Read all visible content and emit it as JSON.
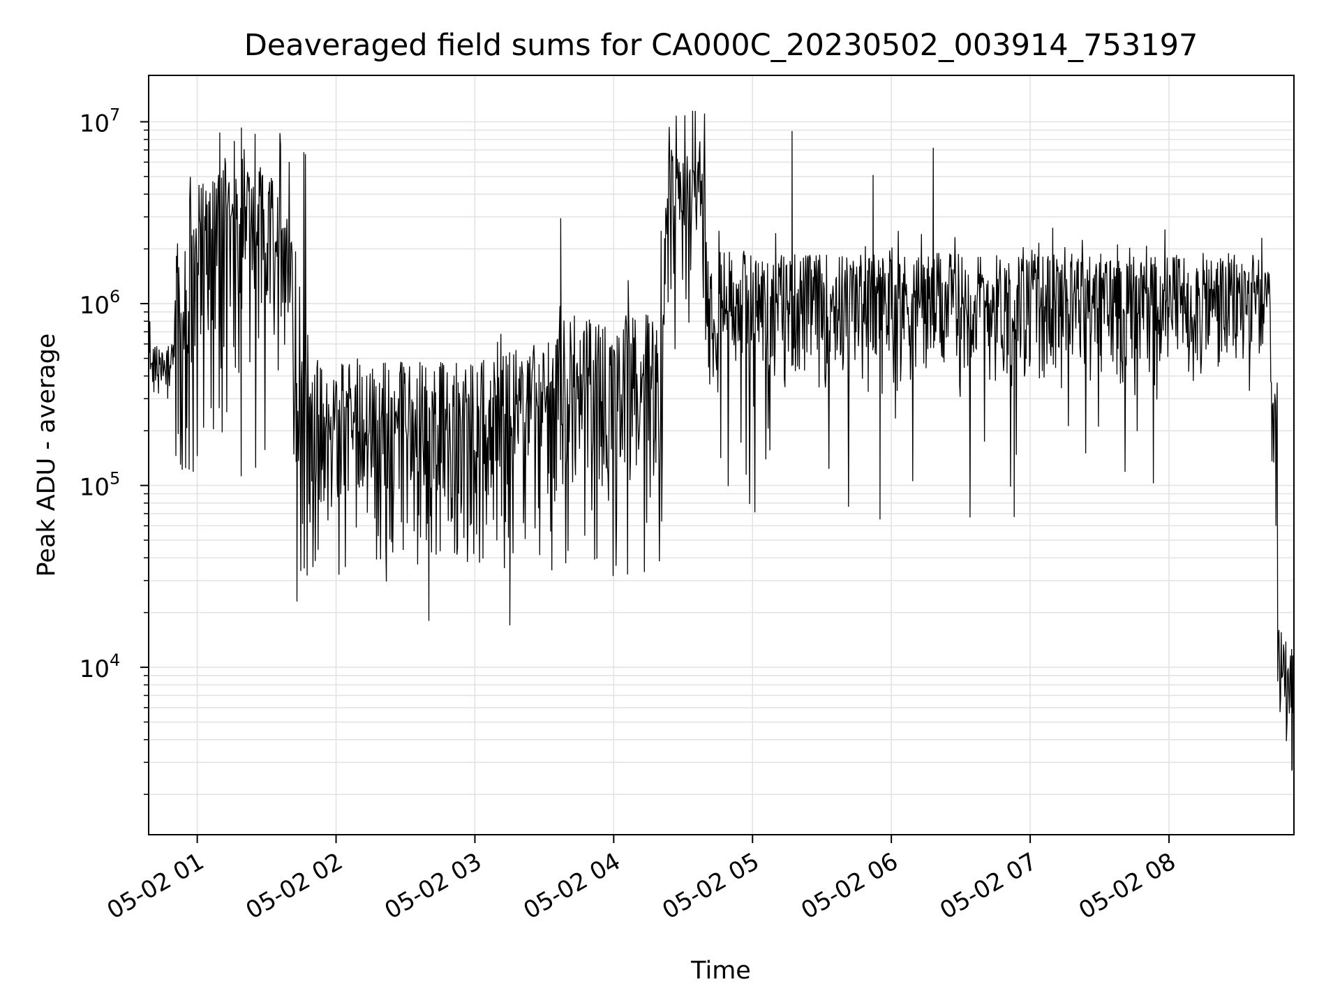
{
  "chart_data": {
    "type": "line",
    "title": "Deaveraged field sums for CA000C_20230502_003914_753197",
    "xlabel": "Time",
    "ylabel": "Peak ADU - average",
    "x_tick_labels": [
      "05-02 01",
      "05-02 02",
      "05-02 03",
      "05-02 04",
      "05-02 05",
      "05-02 06",
      "05-02 07",
      "05-02 08"
    ],
    "y_tick_labels": [
      {
        "base": "10",
        "exp": "4"
      },
      {
        "base": "10",
        "exp": "5"
      },
      {
        "base": "10",
        "exp": "6"
      },
      {
        "base": "10",
        "exp": "7"
      }
    ],
    "yscale": "log",
    "ylim": [
      1200,
      18000000
    ],
    "xlim": [
      "2023-05-02 00:39",
      "2023-05-02 08:54"
    ],
    "grid": true,
    "line_color": "#000000",
    "grid_color": "#e3e3e3",
    "series": [
      {
        "segments": [
          {
            "start": "2023-05-02 00:39",
            "end": "2023-05-02 00:50",
            "low": 300000,
            "high": 600000,
            "spike_prob": 0.05,
            "spike_high": 800000,
            "dip_low": 300000
          },
          {
            "start": "2023-05-02 00:50",
            "end": "2023-05-02 01:00",
            "low": 150000,
            "high": 3000000,
            "spike_prob": 0.15,
            "spike_high": 6000000,
            "dip_low": 110000
          },
          {
            "start": "2023-05-02 01:00",
            "end": "2023-05-02 01:37",
            "low": 500000,
            "high": 5500000,
            "spike_prob": 0.15,
            "spike_high": 9500000,
            "dip_low": 110000
          },
          {
            "start": "2023-05-02 01:37",
            "end": "2023-05-02 01:41",
            "low": 700000,
            "high": 3000000,
            "spike_prob": 0.1,
            "spike_high": 6500000,
            "dip_low": 270000
          },
          {
            "start": "2023-05-02 01:41",
            "end": "2023-05-02 01:48",
            "low": 50000,
            "high": 500000,
            "spike_prob": 0.2,
            "spike_high": 7000000,
            "dip_low": 23000
          },
          {
            "start": "2023-05-02 01:48",
            "end": "2023-05-02 03:00",
            "low": 28000,
            "high": 480000,
            "spike_prob": 0.02,
            "spike_high": 500000,
            "dip_low": 17000
          },
          {
            "start": "2023-05-02 03:00",
            "end": "2023-05-02 03:35",
            "low": 30000,
            "high": 560000,
            "spike_prob": 0.04,
            "spike_high": 700000,
            "dip_low": 17000
          },
          {
            "start": "2023-05-02 03:35",
            "end": "2023-05-02 04:22",
            "low": 45000,
            "high": 900000,
            "spike_prob": 0.04,
            "spike_high": 2800000,
            "dip_low": 31000
          },
          {
            "start": "2023-05-02 04:22",
            "end": "2023-05-02 04:40",
            "low": 1500000,
            "high": 6500000,
            "spike_prob": 0.15,
            "spike_high": 11500000,
            "dip_low": 500000
          },
          {
            "start": "2023-05-02 04:40",
            "end": "2023-05-02 05:00",
            "low": 300000,
            "high": 2000000,
            "spike_prob": 0.08,
            "spike_high": 3000000,
            "dip_low": 78000
          },
          {
            "start": "2023-05-02 05:00",
            "end": "2023-05-02 08:37",
            "low": 300000,
            "high": 1900000,
            "spike_prob": 0.04,
            "spike_high": 2700000,
            "dip_low": 65000
          },
          {
            "start": "2023-05-02 08:37",
            "end": "2023-05-02 08:44",
            "low": 400000,
            "high": 1500000,
            "spike_prob": 0.1,
            "spike_high": 2300000,
            "dip_low": 260000
          },
          {
            "start": "2023-05-02 08:44",
            "end": "2023-05-02 08:47",
            "low": 60000,
            "high": 400000,
            "spike_prob": 0.05,
            "spike_high": 500000,
            "dip_low": 60000
          },
          {
            "start": "2023-05-02 08:47",
            "end": "2023-05-02 08:54",
            "low": 3500,
            "high": 16000,
            "spike_prob": 0.05,
            "spike_high": 17000,
            "dip_low": 2700
          }
        ],
        "spikes": [
          {
            "t": "2023-05-02 01:19",
            "y": 9300000
          },
          {
            "t": "2023-05-02 01:46",
            "y": 6800000
          },
          {
            "t": "2023-05-02 03:37",
            "y": 2950000
          },
          {
            "t": "2023-05-02 04:34",
            "y": 11500000
          },
          {
            "t": "2023-05-02 05:17",
            "y": 8900000
          },
          {
            "t": "2023-05-02 05:52",
            "y": 5100000
          },
          {
            "t": "2023-05-02 06:18",
            "y": 7200000
          },
          {
            "t": "2023-05-02 08:40",
            "y": 2300000
          }
        ],
        "dips": [
          {
            "t": "2023-05-02 01:43",
            "y": 23000
          },
          {
            "t": "2023-05-02 03:15",
            "y": 17000
          },
          {
            "t": "2023-05-02 02:40",
            "y": 18000
          },
          {
            "t": "2023-05-02 05:55",
            "y": 65000
          },
          {
            "t": "2023-05-02 06:53",
            "y": 67000
          },
          {
            "t": "2023-05-02 08:53",
            "y": 2700
          }
        ]
      }
    ]
  }
}
